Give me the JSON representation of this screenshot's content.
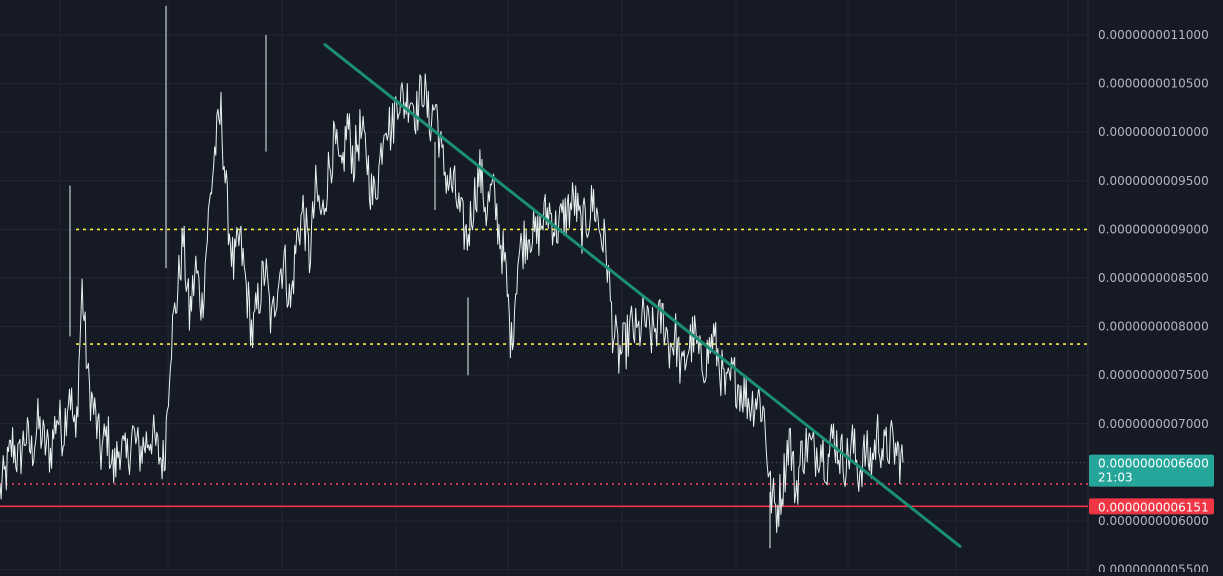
{
  "chart_data": {
    "type": "line",
    "y_axis_side": "right",
    "ylim": [
      5.5e-10,
      1.13e-09
    ],
    "grid": true,
    "y_ticks": [
      {
        "value": 1.1e-09,
        "label": "0.0000000011000"
      },
      {
        "value": 1.05e-09,
        "label": "0.0000000010500"
      },
      {
        "value": 1e-09,
        "label": "0.0000000010000"
      },
      {
        "value": 9.5e-10,
        "label": "0.0000000009500"
      },
      {
        "value": 9e-10,
        "label": "0.0000000009000"
      },
      {
        "value": 8.5e-10,
        "label": "0.0000000008500"
      },
      {
        "value": 8e-10,
        "label": "0.0000000008000"
      },
      {
        "value": 7.5e-10,
        "label": "0.0000000007500"
      },
      {
        "value": 7e-10,
        "label": "0.0000000007000"
      },
      {
        "value": 6e-10,
        "label": "0.0000000006000"
      },
      {
        "value": 5.5e-10,
        "label": "0.0000000005500"
      }
    ],
    "series": [
      {
        "values": [
          6.3,
          6.5,
          6.8,
          6.6,
          6.9,
          6.7,
          7.0,
          6.8,
          6.7,
          7.1,
          6.9,
          7.4,
          6.8,
          8.4,
          7.4,
          7.1,
          6.7,
          6.9,
          6.5,
          6.8,
          6.6,
          6.9,
          6.7,
          6.8,
          6.9,
          6.7,
          6.6,
          7.8,
          8.3,
          8.9,
          8.1,
          8.6,
          8.2,
          9.1,
          9.8,
          10.2,
          9.2,
          8.6,
          8.9,
          8.4,
          7.9,
          8.3,
          8.6,
          8.0,
          8.5,
          8.7,
          8.2,
          8.9,
          9.2,
          8.7,
          9.4,
          9.1,
          9.6,
          9.9,
          9.5,
          10.1,
          9.7,
          10.0,
          9.8,
          9.3,
          9.6,
          10.2,
          10.0,
          10.4,
          10.3,
          10.4,
          10.2,
          10.5,
          10.1,
          10.3,
          9.7,
          9.5,
          9.4,
          9.1,
          8.9,
          9.3,
          9.6,
          9.2,
          9.4,
          9.0,
          8.6,
          7.8,
          8.7,
          8.9,
          9.0,
          8.9,
          9.1,
          9.2,
          9.0,
          9.1,
          9.2,
          9.3,
          9.0,
          9.1,
          9.3,
          9.0,
          8.8,
          8.0,
          7.7,
          7.8,
          8.0,
          7.9,
          8.1,
          7.9,
          8.0,
          8.1,
          7.8,
          7.9,
          7.5,
          7.8,
          7.9,
          7.6,
          7.7,
          7.9,
          7.6,
          7.3,
          7.5,
          7.4,
          7.3,
          7.2,
          7.3,
          7.1,
          6.3,
          6.1,
          6.4,
          6.9,
          6.3,
          6.7,
          6.8,
          6.7,
          6.8,
          6.6,
          6.9,
          6.7,
          6.6,
          6.8,
          6.5,
          6.7,
          6.6,
          6.9,
          6.7,
          6.8,
          6.7,
          6.6
        ]
      }
    ],
    "overlays": {
      "trendline": {
        "from": 1.09e-09,
        "to": 5.74e-10
      },
      "dotted_levels": [
        9e-10,
        7.82e-10
      ],
      "current_price_dotted": 6.6e-10,
      "red_dotted_level": 6.38e-10,
      "red_solid_level": 6.151e-10
    },
    "price_labels": [
      {
        "label": "0.0000000006600",
        "sub_label": "21:03",
        "color": "#26a69a"
      },
      {
        "label": "0.0000000006151",
        "color": "#f23645"
      }
    ],
    "colors": {
      "background": "#161a25",
      "grid": "#232735",
      "price_line": "#e6f1ef",
      "trendline": "#1b8e76",
      "yellow_dotted": "#f5ea3a",
      "red_dotted": "#e5405a",
      "red_solid": "#f23645",
      "axis_text": "#b2b5be"
    }
  }
}
